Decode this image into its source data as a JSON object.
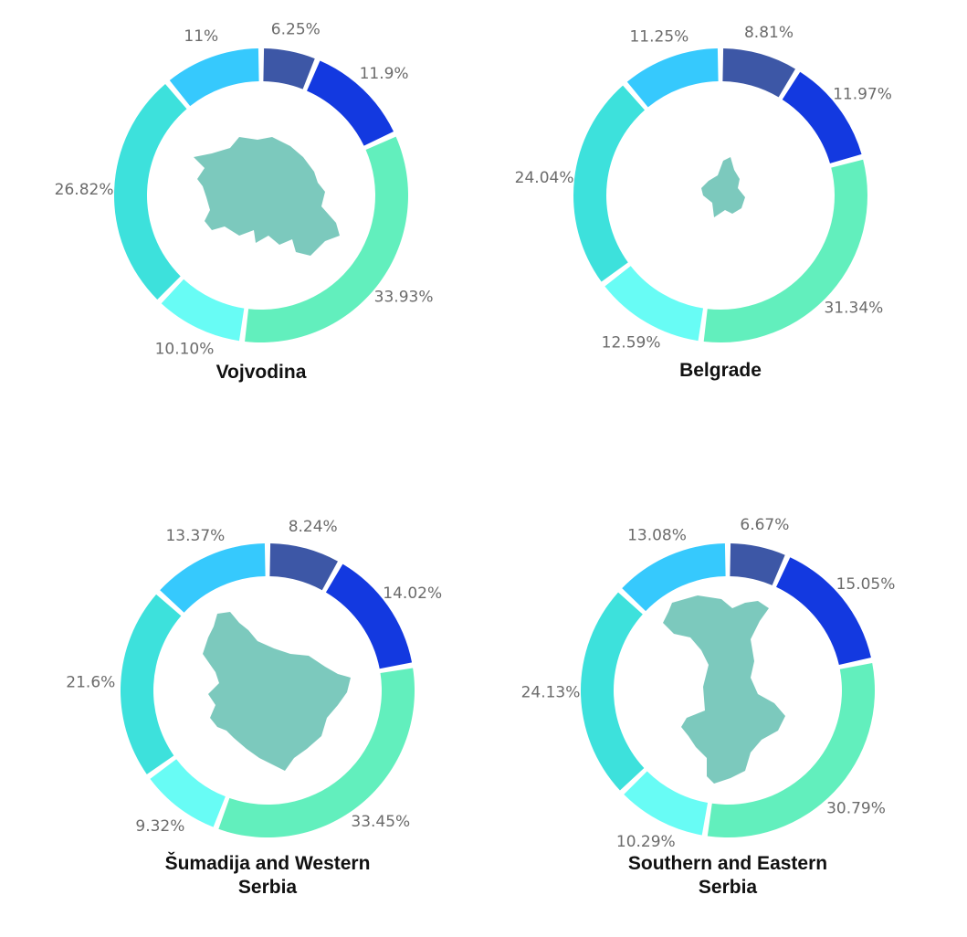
{
  "chart_data": [
    {
      "type": "pie",
      "title_lines": [
        "Vojvodina"
      ],
      "labels": [
        "6.25%",
        "11.9%",
        "33.93%",
        "10.10%",
        "26.82%",
        "11%"
      ],
      "values": [
        6.25,
        11.9,
        33.93,
        10.1,
        26.82,
        11
      ]
    },
    {
      "type": "pie",
      "title_lines": [
        "Belgrade"
      ],
      "labels": [
        "8.81%",
        "11.97%",
        "31.34%",
        "12.59%",
        "24.04%",
        "11.25%"
      ],
      "values": [
        8.81,
        11.97,
        31.34,
        12.59,
        24.04,
        11.25
      ]
    },
    {
      "type": "pie",
      "title_lines": [
        "Šumadija and Western",
        "Serbia"
      ],
      "labels": [
        "8.24%",
        "14.02%",
        "33.45%",
        "9.32%",
        "21.6%",
        "13.37%"
      ],
      "values": [
        8.24,
        14.02,
        33.45,
        9.32,
        21.6,
        13.37
      ]
    },
    {
      "type": "pie",
      "title_lines": [
        "Southern and Eastern",
        "Serbia"
      ],
      "labels": [
        "6.67%",
        "15.05%",
        "30.79%",
        "10.29%",
        "24.13%",
        "13.08%"
      ],
      "values": [
        6.67,
        15.05,
        30.79,
        10.29,
        24.13,
        13.08
      ]
    }
  ],
  "segment_colors": [
    "#3d57a6",
    "#1339e0",
    "#62efbd",
    "#68fcf5",
    "#3de1dc",
    "#36c9fd"
  ],
  "region_shape_color": "#7cc9bd"
}
